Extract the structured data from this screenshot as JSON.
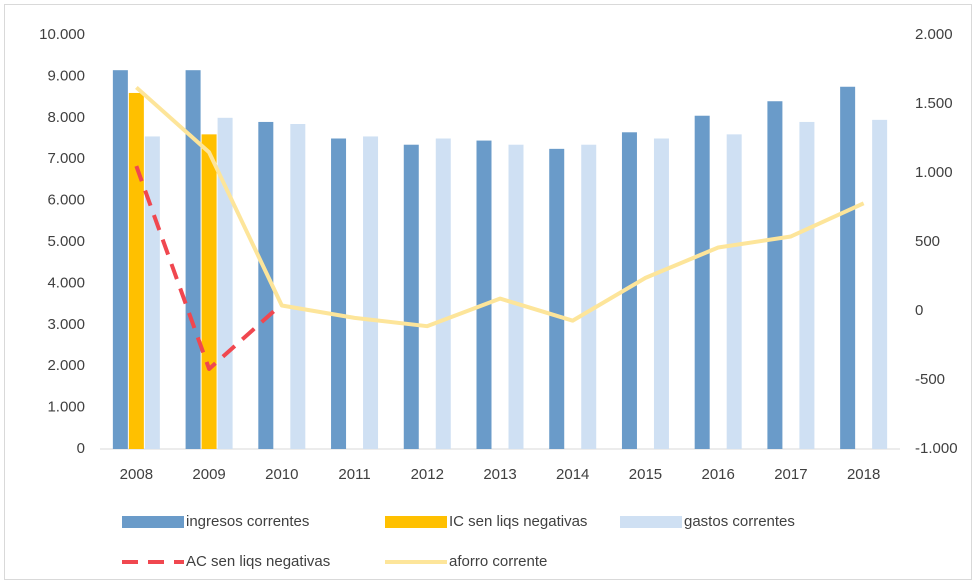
{
  "chart_data": {
    "type": "combo",
    "categories": [
      "2008",
      "2009",
      "2010",
      "2011",
      "2012",
      "2013",
      "2014",
      "2015",
      "2016",
      "2017",
      "2018"
    ],
    "series": [
      {
        "name": "ingresos correntes",
        "type": "bar",
        "color": "#6a9bc9",
        "values": [
          9150,
          9150,
          7900,
          7500,
          7350,
          7450,
          7250,
          7650,
          8050,
          8400,
          8750
        ]
      },
      {
        "name": "IC sen liqs negativas",
        "type": "bar",
        "color": "#ffc000",
        "values": [
          8600,
          7600,
          null,
          null,
          null,
          null,
          null,
          null,
          null,
          null,
          null
        ]
      },
      {
        "name": "gastos correntes",
        "type": "bar",
        "color": "#cfe0f3",
        "values": [
          7550,
          8000,
          7850,
          7550,
          7500,
          7350,
          7350,
          7500,
          7600,
          7900,
          7950
        ]
      },
      {
        "name": "AC sen liqs negativas",
        "type": "line",
        "axis": "y2",
        "dashed": true,
        "color": "#f0474f",
        "values": [
          1050,
          -420,
          50,
          null,
          null,
          null,
          null,
          null,
          null,
          null,
          null
        ]
      },
      {
        "name": "aforro corrente",
        "type": "line",
        "axis": "y2",
        "color": "#fde59a",
        "values": [
          1620,
          1150,
          40,
          -50,
          -110,
          90,
          -70,
          240,
          460,
          540,
          780
        ]
      }
    ],
    "ylim": [
      0,
      10000
    ],
    "yticks": [
      0,
      {
        "value": 1000,
        "label": "1.000"
      },
      {
        "value": 2000,
        "label": "2.000"
      },
      {
        "value": 3000,
        "label": "3.000"
      },
      {
        "value": 4000,
        "label": "4.000"
      },
      {
        "value": 5000,
        "label": "5.000"
      },
      {
        "value": 6000,
        "label": "6.000"
      },
      {
        "value": 7000,
        "label": "7.000"
      },
      {
        "value": 8000,
        "label": "8.000"
      },
      {
        "value": 9000,
        "label": "9.000"
      },
      {
        "value": 10000,
        "label": "10.000"
      }
    ],
    "y2lim": [
      -1000,
      2000
    ],
    "y2ticks": [
      {
        "value": -1000,
        "label": "-1.000"
      },
      -500,
      0,
      500,
      {
        "value": 1000,
        "label": "1.000"
      },
      {
        "value": 1500,
        "label": "1.500"
      },
      {
        "value": 2000,
        "label": "2.000"
      }
    ]
  }
}
